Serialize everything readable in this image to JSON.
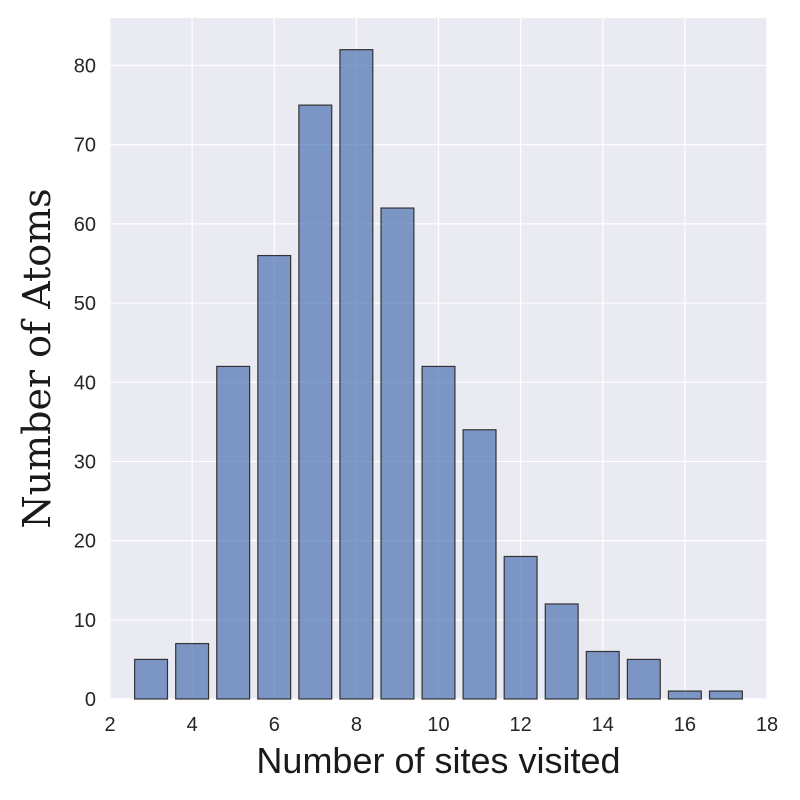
{
  "chart_data": {
    "type": "bar",
    "title": "",
    "xlabel": "Number of sites visited",
    "ylabel": "Number of Atoms",
    "x": [
      3,
      4,
      5,
      6,
      7,
      8,
      9,
      10,
      11,
      12,
      13,
      14,
      15,
      16,
      17
    ],
    "values": [
      5,
      7,
      42,
      56,
      75,
      82,
      62,
      42,
      34,
      18,
      12,
      6,
      5,
      1,
      1
    ],
    "xlim": [
      2,
      18
    ],
    "ylim": [
      0,
      86
    ],
    "xticks": [
      2,
      4,
      6,
      8,
      10,
      12,
      14,
      16,
      18
    ],
    "yticks": [
      0,
      10,
      20,
      30,
      40,
      50,
      60,
      70,
      80
    ],
    "grid": true,
    "colors": {
      "plot_background": "#eaeaf2",
      "grid": "#ffffff",
      "bar_fill": "#4c72b0",
      "bar_edge": "#333333"
    }
  }
}
